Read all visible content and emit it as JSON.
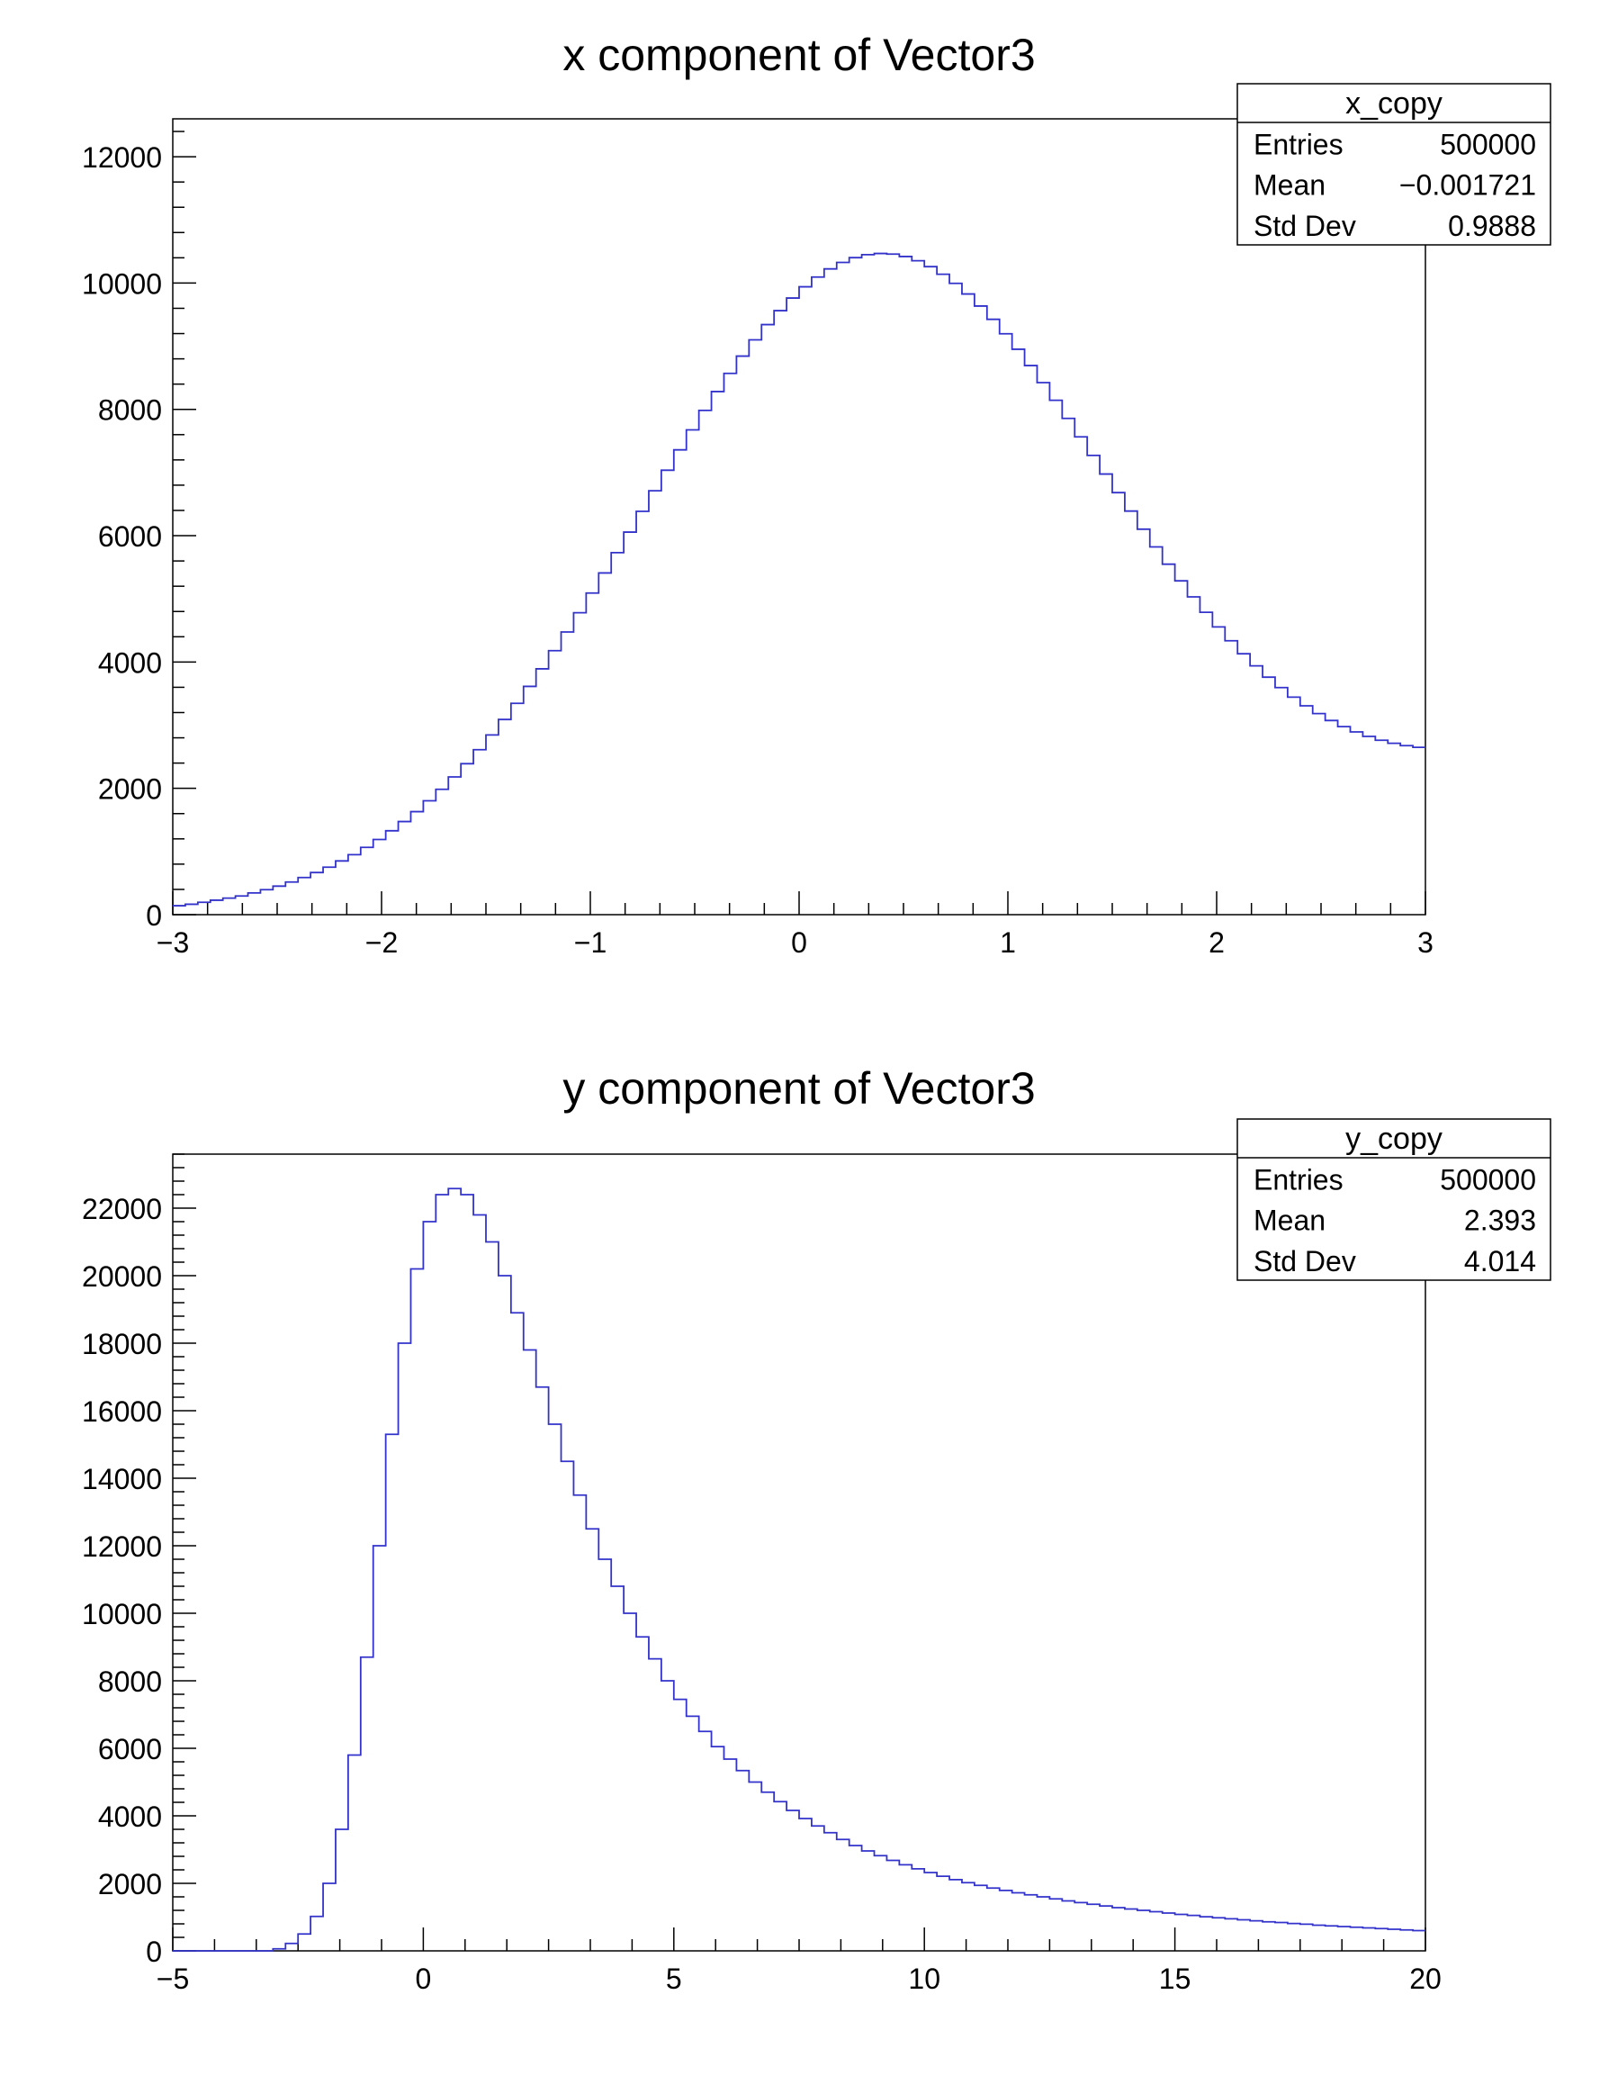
{
  "chart_data": [
    {
      "type": "histogram",
      "title": "x component of Vector3",
      "xlabel": "",
      "ylabel": "",
      "xlim": [
        -3,
        3
      ],
      "ylim": [
        0,
        12600
      ],
      "xticks": [
        -3,
        -2,
        -1,
        0,
        1,
        2,
        3
      ],
      "xtick_labels": [
        "−3",
        "−2",
        "−1",
        "0",
        "1",
        "2",
        "3"
      ],
      "yticks": [
        0,
        2000,
        4000,
        6000,
        8000,
        10000,
        12000
      ],
      "ytick_labels": [
        "0",
        "2000",
        "4000",
        "6000",
        "8000",
        "10000",
        "12000"
      ],
      "bin_edges_range": [
        -3,
        3
      ],
      "bin_count": 100,
      "values": [
        142,
        165,
        196,
        229,
        262,
        296,
        344,
        396,
        452,
        517,
        588,
        667,
        752,
        851,
        950,
        1065,
        1190,
        1328,
        1474,
        1631,
        1803,
        1985,
        2181,
        2390,
        2612,
        2845,
        3090,
        3346,
        3614,
        3892,
        4180,
        4476,
        4780,
        5092,
        5410,
        5732,
        6057,
        6385,
        6712,
        7037,
        7359,
        7675,
        7984,
        8282,
        8570,
        8843,
        9101,
        9342,
        9563,
        9763,
        9941,
        10095,
        10224,
        10327,
        10402,
        10450,
        10468,
        10458,
        10420,
        10353,
        10260,
        10140,
        9995,
        9827,
        9636,
        9426,
        9197,
        8952,
        8694,
        8424,
        8144,
        7857,
        7565,
        7271,
        6976,
        6682,
        6390,
        6103,
        5822,
        5549,
        5285,
        5031,
        4787,
        4556,
        4337,
        4131,
        3939,
        3760,
        3595,
        3444,
        3307,
        3184,
        3074,
        2977,
        2893,
        2822,
        2762,
        2714,
        2676,
        2649
      ],
      "stats_box": {
        "name": "x_copy",
        "rows": [
          {
            "label": "Entries",
            "value": "500000"
          },
          {
            "label": "Mean",
            "value": "−0.001721"
          },
          {
            "label": "Std Dev",
            "value": "0.9888"
          }
        ]
      },
      "line_color": "#3333cc"
    },
    {
      "type": "histogram",
      "title": "y component of Vector3",
      "xlabel": "",
      "ylabel": "",
      "xlim": [
        -5,
        20
      ],
      "ylim": [
        0,
        23600
      ],
      "xticks": [
        -5,
        0,
        5,
        10,
        15,
        20
      ],
      "xtick_labels": [
        "−5",
        "0",
        "5",
        "10",
        "15",
        "20"
      ],
      "yticks": [
        0,
        2000,
        4000,
        6000,
        8000,
        10000,
        12000,
        14000,
        16000,
        18000,
        20000,
        22000
      ],
      "ytick_labels": [
        "0",
        "2000",
        "4000",
        "6000",
        "8000",
        "10000",
        "12000",
        "14000",
        "16000",
        "18000",
        "20000",
        "22000"
      ],
      "bin_edges_range": [
        -5,
        20
      ],
      "bin_count": 100,
      "values": [
        0,
        0,
        0,
        0,
        0,
        0,
        0,
        0,
        60,
        220,
        500,
        1020,
        2000,
        3600,
        5800,
        8700,
        12000,
        15300,
        18000,
        20200,
        21600,
        22400,
        22580,
        22400,
        21800,
        21000,
        20000,
        18900,
        17800,
        16700,
        15600,
        14500,
        13500,
        12500,
        11600,
        10800,
        10000,
        9300,
        8650,
        8000,
        7450,
        6950,
        6500,
        6050,
        5680,
        5340,
        5000,
        4700,
        4420,
        4160,
        3920,
        3700,
        3500,
        3300,
        3120,
        2960,
        2820,
        2680,
        2550,
        2430,
        2320,
        2210,
        2110,
        2020,
        1940,
        1860,
        1790,
        1720,
        1660,
        1600,
        1540,
        1480,
        1430,
        1380,
        1330,
        1280,
        1240,
        1200,
        1160,
        1120,
        1080,
        1050,
        1010,
        980,
        950,
        920,
        890,
        860,
        840,
        810,
        790,
        760,
        740,
        720,
        700,
        680,
        660,
        640,
        620,
        600
      ],
      "stats_box": {
        "name": "y_copy",
        "rows": [
          {
            "label": "Entries",
            "value": "500000"
          },
          {
            "label": "Mean",
            "value": "2.393"
          },
          {
            "label": "Std Dev",
            "value": "4.014"
          }
        ]
      },
      "line_color": "#3333cc"
    }
  ]
}
